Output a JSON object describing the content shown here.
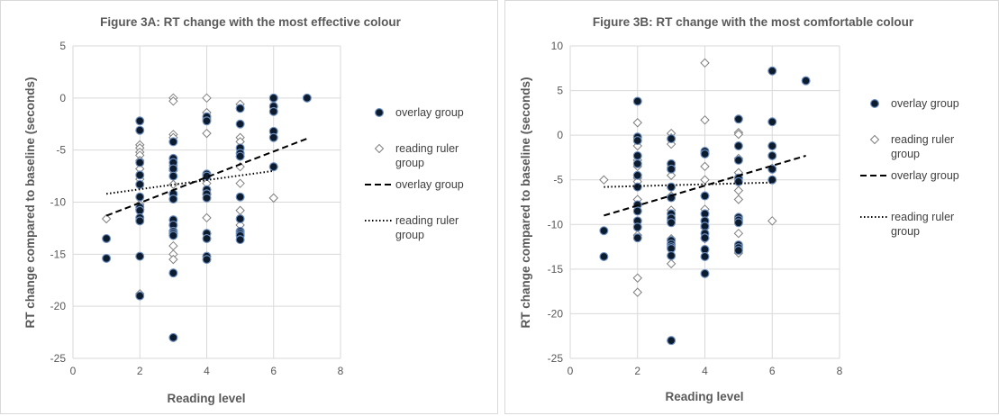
{
  "chart_data": [
    {
      "type": "scatter",
      "title": "Figure 3A: RT change with the most effective colour",
      "xlabel": "Reading level",
      "ylabel": "RT change compared to baseline (seconds)",
      "xlim": [
        0,
        8
      ],
      "ylim": [
        -25,
        5
      ],
      "xticks": [
        "0",
        "2",
        "4",
        "6",
        "8"
      ],
      "yticks": [
        "-25",
        "-20",
        "-15",
        "-10",
        "-5",
        "0",
        "5"
      ],
      "grid": true,
      "legend_position": "right",
      "legend": [
        "overlay group",
        "reading ruler group",
        "overlay group",
        "reading ruler group"
      ],
      "series": [
        {
          "name": "overlay group",
          "marker": "filled-circle",
          "x": [
            1,
            1,
            2,
            2,
            2,
            2,
            2,
            2,
            2,
            2,
            2,
            2,
            2,
            2,
            3,
            3,
            3,
            3,
            3,
            3,
            3,
            3,
            3,
            3,
            3,
            3,
            3,
            3,
            4,
            4,
            4,
            4,
            4,
            4,
            4,
            4,
            4,
            4,
            4,
            5,
            5,
            5,
            5,
            5,
            5,
            5,
            5,
            5,
            5,
            5,
            6,
            6,
            6,
            6,
            6,
            6,
            7
          ],
          "y": [
            -13.5,
            -15.4,
            -2.2,
            -3.1,
            -6.2,
            -7.4,
            -8.3,
            -9.5,
            -10.5,
            -10.8,
            -11.5,
            -11.8,
            -15.2,
            -19.0,
            -4.2,
            -5.8,
            -6.2,
            -6.8,
            -7.5,
            -9.2,
            -9.7,
            -11.7,
            -12.2,
            -12.8,
            -13.0,
            -13.2,
            -16.8,
            -23.0,
            -1.8,
            -2.2,
            -7.3,
            -7.5,
            -8.8,
            -9.2,
            -9.6,
            -13.0,
            -13.5,
            -15.2,
            -15.5,
            -1.0,
            -2.5,
            -4.8,
            -5.3,
            -5.6,
            -9.5,
            -11.6,
            -12.8,
            -13.0,
            -13.2,
            -13.6,
            0.0,
            -0.8,
            -1.3,
            -3.2,
            -3.8,
            -6.6,
            0.0
          ]
        },
        {
          "name": "reading ruler group",
          "marker": "open-diamond",
          "x": [
            1,
            2,
            2,
            2,
            2,
            2,
            2,
            2,
            2,
            2,
            2,
            3,
            3,
            3,
            3,
            3,
            3,
            3,
            3,
            3,
            3,
            3,
            3,
            4,
            4,
            4,
            4,
            4,
            4,
            4,
            4,
            4,
            5,
            5,
            5,
            5,
            5,
            5,
            5,
            5,
            6,
            6
          ],
          "y": [
            -11.6,
            -4.5,
            -4.8,
            -5.2,
            -5.5,
            -6.0,
            -6.8,
            -7.8,
            -10.2,
            -10.7,
            -18.8,
            0.0,
            -0.3,
            -3.5,
            -3.8,
            -6.5,
            -7.0,
            -8.3,
            -9.3,
            -13.0,
            -14.2,
            -15.0,
            -15.5,
            0.0,
            -1.4,
            -2.0,
            -3.4,
            -7.4,
            -8.2,
            -9.3,
            -11.5,
            -13.0,
            -0.6,
            -3.8,
            -4.2,
            -5.6,
            -6.6,
            -8.2,
            -10.8,
            -12.2,
            -6.6,
            -9.6
          ]
        },
        {
          "name": "overlay group",
          "type": "trendline",
          "style": "dashed",
          "x": [
            1,
            7
          ],
          "y": [
            -11.3,
            -3.9
          ]
        },
        {
          "name": "reading ruler group",
          "type": "trendline",
          "style": "dotted",
          "x": [
            1,
            6
          ],
          "y": [
            -9.2,
            -7.0
          ]
        }
      ]
    },
    {
      "type": "scatter",
      "title": "Figure 3B: RT change with the most comfortable colour",
      "xlabel": "Reading level",
      "ylabel": "RT change compared to baseline (seconds)",
      "xlim": [
        0,
        8
      ],
      "ylim": [
        -25,
        10
      ],
      "xticks": [
        "0",
        "2",
        "4",
        "6",
        "8"
      ],
      "yticks": [
        "-25",
        "-20",
        "-15",
        "-10",
        "-5",
        "0",
        "5",
        "10"
      ],
      "grid": true,
      "legend_position": "right",
      "legend": [
        "overlay group",
        "reading ruler group",
        "overlay group",
        "reading ruler group"
      ],
      "series": [
        {
          "name": "overlay group",
          "marker": "filled-circle",
          "x": [
            1,
            1,
            2,
            2,
            2,
            2,
            2,
            2,
            2,
            2,
            2,
            2,
            2,
            2,
            3,
            3,
            3,
            3,
            3,
            3,
            3,
            3,
            3,
            3,
            3,
            3,
            3,
            3,
            4,
            4,
            4,
            4,
            4,
            4,
            4,
            4,
            4,
            4,
            4,
            5,
            5,
            5,
            5,
            5,
            5,
            5,
            5,
            5,
            5,
            5,
            6,
            6,
            6,
            6,
            6,
            6,
            7
          ],
          "y": [
            -10.7,
            -13.6,
            3.8,
            -0.2,
            -0.6,
            -2.3,
            -3.2,
            -4.5,
            -5.8,
            -7.8,
            -8.5,
            -9.6,
            -10.3,
            -11.5,
            -0.4,
            -3.2,
            -3.8,
            -5.8,
            -7.0,
            -8.8,
            -9.3,
            -9.8,
            -11.8,
            -12.2,
            -12.5,
            -12.7,
            -13.5,
            -23.0,
            -1.8,
            -2.1,
            -6.8,
            -8.8,
            -9.6,
            -10.2,
            -11.0,
            -11.5,
            -12.8,
            -13.6,
            -15.5,
            1.8,
            -1.2,
            -2.8,
            -4.8,
            -5.2,
            -9.2,
            -9.5,
            -9.8,
            -12.3,
            -12.6,
            -12.9,
            7.2,
            1.5,
            -1.2,
            -2.3,
            -3.8,
            -5.0,
            6.1
          ]
        },
        {
          "name": "reading ruler group",
          "marker": "open-diamond",
          "x": [
            1,
            2,
            2,
            2,
            2,
            2,
            2,
            2,
            2,
            2,
            2,
            3,
            3,
            3,
            3,
            3,
            3,
            3,
            3,
            3,
            3,
            3,
            3,
            4,
            4,
            4,
            4,
            4,
            4,
            4,
            4,
            4,
            5,
            5,
            5,
            5,
            5,
            5,
            5,
            5,
            6,
            6
          ],
          "y": [
            -5.0,
            1.4,
            -1.2,
            -2.8,
            -3.5,
            -4.8,
            -5.2,
            -7.2,
            -11.2,
            -16.0,
            -17.6,
            0.2,
            -0.3,
            -1.0,
            -3.6,
            -4.5,
            -6.8,
            -8.4,
            -9.5,
            -11.6,
            -14.4,
            -11.8,
            -12.2,
            8.1,
            1.7,
            -2.0,
            -3.5,
            -5.0,
            -6.8,
            -8.3,
            -10.4,
            -11.6,
            0.3,
            0.1,
            -2.6,
            -4.2,
            -6.2,
            -7.2,
            -11.0,
            -13.2,
            -3.7,
            -9.6
          ]
        },
        {
          "name": "overlay group",
          "type": "trendline",
          "style": "dashed",
          "x": [
            1,
            7
          ],
          "y": [
            -9.0,
            -2.3
          ]
        },
        {
          "name": "reading ruler group",
          "type": "trendline",
          "style": "dotted",
          "x": [
            1,
            6
          ],
          "y": [
            -5.8,
            -5.3
          ]
        }
      ]
    }
  ]
}
